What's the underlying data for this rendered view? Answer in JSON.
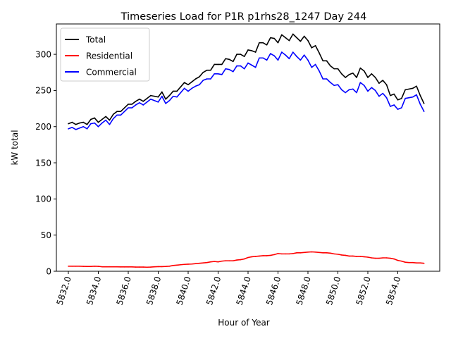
{
  "chart_data": {
    "type": "line",
    "title": "Timeseries Load for P1R p1rhs28_1247  Day 244",
    "xlabel": "Hour of Year",
    "ylabel": "kW total",
    "xlim": [
      5831.2,
      5856.8
    ],
    "ylim": [
      0,
      342
    ],
    "x_ticks": [
      5832,
      5834,
      5836,
      5838,
      5840,
      5842,
      5844,
      5846,
      5848,
      5850,
      5852,
      5854
    ],
    "x_tick_labels": [
      "5832.0",
      "5834.0",
      "5836.0",
      "5838.0",
      "5840.0",
      "5842.0",
      "5844.0",
      "5846.0",
      "5848.0",
      "5850.0",
      "5852.0",
      "5854.0"
    ],
    "y_ticks": [
      0,
      50,
      100,
      150,
      200,
      250,
      300
    ],
    "y_tick_labels": [
      "0",
      "50",
      "100",
      "150",
      "200",
      "250",
      "300"
    ],
    "grid": false,
    "legend_position": "top-left",
    "x": [
      5832.0,
      5832.25,
      5832.5,
      5832.75,
      5833.0,
      5833.25,
      5833.5,
      5833.75,
      5834.0,
      5834.25,
      5834.5,
      5834.75,
      5835.0,
      5835.25,
      5835.5,
      5835.75,
      5836.0,
      5836.25,
      5836.5,
      5836.75,
      5837.0,
      5837.25,
      5837.5,
      5837.75,
      5838.0,
      5838.25,
      5838.5,
      5838.75,
      5839.0,
      5839.25,
      5839.5,
      5839.75,
      5840.0,
      5840.25,
      5840.5,
      5840.75,
      5841.0,
      5841.25,
      5841.5,
      5841.75,
      5842.0,
      5842.25,
      5842.5,
      5842.75,
      5843.0,
      5843.25,
      5843.5,
      5843.75,
      5844.0,
      5844.25,
      5844.5,
      5844.75,
      5845.0,
      5845.25,
      5845.5,
      5845.75,
      5846.0,
      5846.25,
      5846.5,
      5846.75,
      5847.0,
      5847.25,
      5847.5,
      5847.75,
      5848.0,
      5848.25,
      5848.5,
      5848.75,
      5849.0,
      5849.25,
      5849.5,
      5849.75,
      5850.0,
      5850.25,
      5850.5,
      5850.75,
      5851.0,
      5851.25,
      5851.5,
      5851.75,
      5852.0,
      5852.25,
      5852.5,
      5852.75,
      5853.0,
      5853.25,
      5853.5,
      5853.75,
      5854.0,
      5854.25,
      5854.5,
      5854.75,
      5855.0,
      5855.25,
      5855.5,
      5855.75
    ],
    "series": [
      {
        "name": "Total",
        "color": "#000000",
        "values": [
          204,
          206,
          203,
          205,
          206,
          203,
          210,
          212,
          206,
          210,
          214,
          209,
          217,
          221,
          221,
          226,
          231,
          231,
          235,
          238,
          235,
          239,
          243,
          242,
          241,
          248,
          238,
          243,
          249,
          249,
          255,
          261,
          258,
          262,
          266,
          269,
          275,
          278,
          278,
          286,
          286,
          286,
          294,
          293,
          290,
          300,
          300,
          297,
          306,
          305,
          303,
          316,
          316,
          313,
          323,
          322,
          316,
          327,
          323,
          319,
          328,
          323,
          318,
          325,
          319,
          309,
          312,
          302,
          291,
          291,
          284,
          280,
          280,
          273,
          268,
          272,
          274,
          268,
          281,
          277,
          268,
          273,
          268,
          260,
          264,
          258,
          243,
          245,
          237,
          239,
          251,
          252,
          253,
          256,
          243,
          232
        ]
      },
      {
        "name": "Residential",
        "color": "#ff0000",
        "values": [
          7,
          7,
          7,
          7,
          6.8,
          6.6,
          6.6,
          7,
          6.8,
          6.2,
          6.2,
          6.2,
          6.2,
          6.2,
          6,
          6,
          6,
          6,
          5.8,
          5.8,
          5.8,
          5.6,
          5.8,
          6.2,
          6.4,
          6.4,
          6.6,
          7,
          8,
          8.5,
          9,
          9.5,
          9.8,
          10,
          10.5,
          11,
          11.5,
          12,
          13,
          13.5,
          13,
          14,
          14.5,
          14.5,
          14.5,
          15.5,
          16,
          17,
          19,
          20,
          20.5,
          21,
          21.5,
          21.5,
          22,
          23,
          24.5,
          24,
          24,
          24,
          24.5,
          25.5,
          25.5,
          26,
          26.5,
          26.8,
          26.5,
          26,
          25.5,
          25.5,
          25,
          24,
          23.5,
          22.5,
          22,
          21,
          21,
          20.5,
          20.5,
          20,
          19.5,
          18.5,
          18,
          18,
          18.5,
          18.5,
          18,
          17,
          15,
          14,
          12.5,
          12,
          12,
          11.5,
          11.5,
          11
        ]
      },
      {
        "name": "Commercial",
        "color": "#0000ff",
        "values": [
          197,
          199,
          196,
          198,
          200,
          197,
          204,
          205,
          200,
          205,
          209,
          203,
          211,
          216,
          216,
          221,
          226,
          226,
          230,
          233,
          230,
          234,
          238,
          236,
          234,
          242,
          232,
          236,
          242,
          241,
          247,
          253,
          249,
          253,
          256,
          258,
          264,
          266,
          266,
          273,
          273,
          272,
          280,
          279,
          276,
          284,
          284,
          280,
          288,
          285,
          282,
          295,
          295,
          292,
          301,
          298,
          292,
          303,
          299,
          294,
          303,
          297,
          292,
          299,
          292,
          282,
          286,
          277,
          266,
          266,
          261,
          257,
          258,
          251,
          247,
          251,
          252,
          247,
          261,
          257,
          249,
          254,
          250,
          242,
          246,
          240,
          228,
          230,
          224,
          226,
          239,
          240,
          241,
          244,
          231,
          221
        ]
      }
    ]
  }
}
